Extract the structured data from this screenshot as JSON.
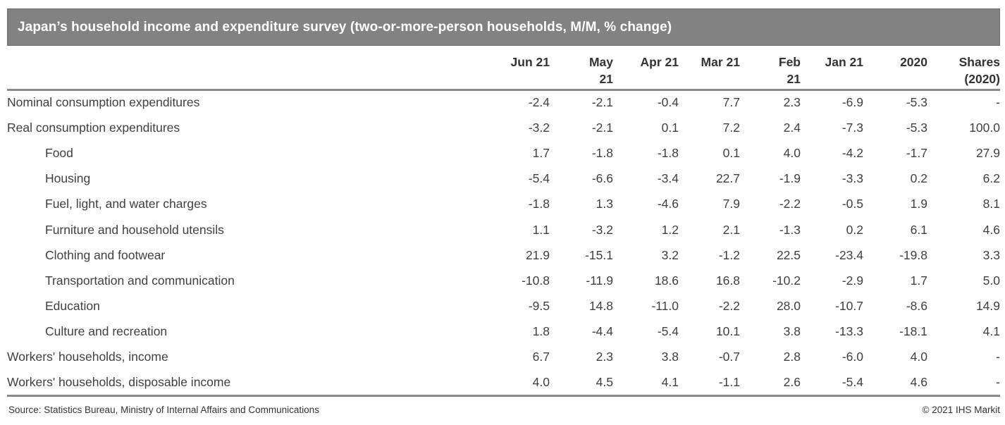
{
  "title": "Japan’s household income and expenditure survey (two-or-more-person households, M/M, % change)",
  "footer": {
    "source": "Source: Statistics Bureau, Ministry of Internal Affairs and Communications",
    "copyright": "© 2021 IHS Markit"
  },
  "colors": {
    "title_bar_bg": "#828282",
    "title_text": "#ffffff",
    "rule_gray": "#8a8a8a",
    "body_text": "#404040"
  },
  "chart_data": {
    "type": "table",
    "title": "Japan’s household income and expenditure survey (two-or-more-person households, M/M, % change)",
    "columns": [
      "Jun 21",
      "May 21",
      "Apr 21",
      "Mar 21",
      "Feb 21",
      "Jan 21",
      "2020",
      "Shares (2020)"
    ],
    "rows": [
      {
        "label": "Nominal consumption expenditures",
        "indent": false,
        "values": [
          "-2.4",
          "-2.1",
          "-0.4",
          "7.7",
          "2.3",
          "-6.9",
          "-5.3",
          "-"
        ]
      },
      {
        "label": "Real consumption expenditures",
        "indent": false,
        "values": [
          "-3.2",
          "-2.1",
          "0.1",
          "7.2",
          "2.4",
          "-7.3",
          "-5.3",
          "100.0"
        ]
      },
      {
        "label": "Food",
        "indent": true,
        "values": [
          "1.7",
          "-1.8",
          "-1.8",
          "0.1",
          "4.0",
          "-4.2",
          "-1.7",
          "27.9"
        ]
      },
      {
        "label": "Housing",
        "indent": true,
        "values": [
          "-5.4",
          "-6.6",
          "-3.4",
          "22.7",
          "-1.9",
          "-3.3",
          "0.2",
          "6.2"
        ]
      },
      {
        "label": "Fuel, light, and water charges",
        "indent": true,
        "values": [
          "-1.8",
          "1.3",
          "-4.6",
          "7.9",
          "-2.2",
          "-0.5",
          "1.9",
          "8.1"
        ]
      },
      {
        "label": "Furniture and household utensils",
        "indent": true,
        "values": [
          "1.1",
          "-3.2",
          "1.2",
          "2.1",
          "-1.3",
          "0.2",
          "6.1",
          "4.6"
        ]
      },
      {
        "label": "Clothing and footwear",
        "indent": true,
        "values": [
          "21.9",
          "-15.1",
          "3.2",
          "-1.2",
          "22.5",
          "-23.4",
          "-19.8",
          "3.3"
        ]
      },
      {
        "label": "Transportation and communication",
        "indent": true,
        "values": [
          "-10.8",
          "-11.9",
          "18.6",
          "16.8",
          "-10.2",
          "-2.9",
          "1.7",
          "5.0"
        ]
      },
      {
        "label": "Education",
        "indent": true,
        "values": [
          "-9.5",
          "14.8",
          "-11.0",
          "-2.2",
          "28.0",
          "-10.7",
          "-8.6",
          "14.9"
        ]
      },
      {
        "label": "Culture and recreation",
        "indent": true,
        "values": [
          "1.8",
          "-4.4",
          "-5.4",
          "10.1",
          "3.8",
          "-13.3",
          "-18.1",
          "4.1"
        ]
      },
      {
        "label": "Workers' households, income",
        "indent": false,
        "values": [
          "6.7",
          "2.3",
          "3.8",
          "-0.7",
          "2.8",
          "-6.0",
          "4.0",
          "-"
        ]
      },
      {
        "label": "Workers' households, disposable income",
        "indent": false,
        "values": [
          "4.0",
          "4.5",
          "4.1",
          "-1.1",
          "2.6",
          "-5.4",
          "4.6",
          "-"
        ]
      }
    ]
  }
}
